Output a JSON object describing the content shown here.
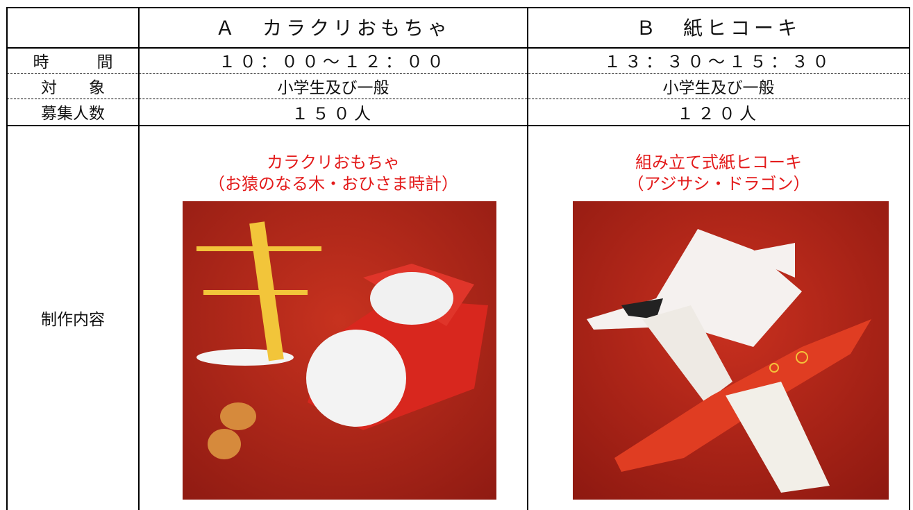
{
  "table": {
    "header": [
      "Ａ　カラクリおもちゃ",
      "Ｂ　紙ヒコーキ"
    ],
    "rows": [
      {
        "label": "時　　　間",
        "a": "１０：００～１２：００",
        "b": "１３：３０～１５：３０"
      },
      {
        "label": "対　　象",
        "a": "小学生及び一般",
        "b": "小学生及び一般"
      },
      {
        "label": "募集人数",
        "a": "１５０人",
        "b": "１２０人"
      }
    ],
    "content": {
      "label": "制作内容",
      "a": [
        "カラクリおもちゃ",
        "（お猿のなる木・おひさま時計）"
      ],
      "b": [
        "組み立て式紙ヒコーキ",
        "（アジサシ・ドラゴン）"
      ]
    }
  }
}
